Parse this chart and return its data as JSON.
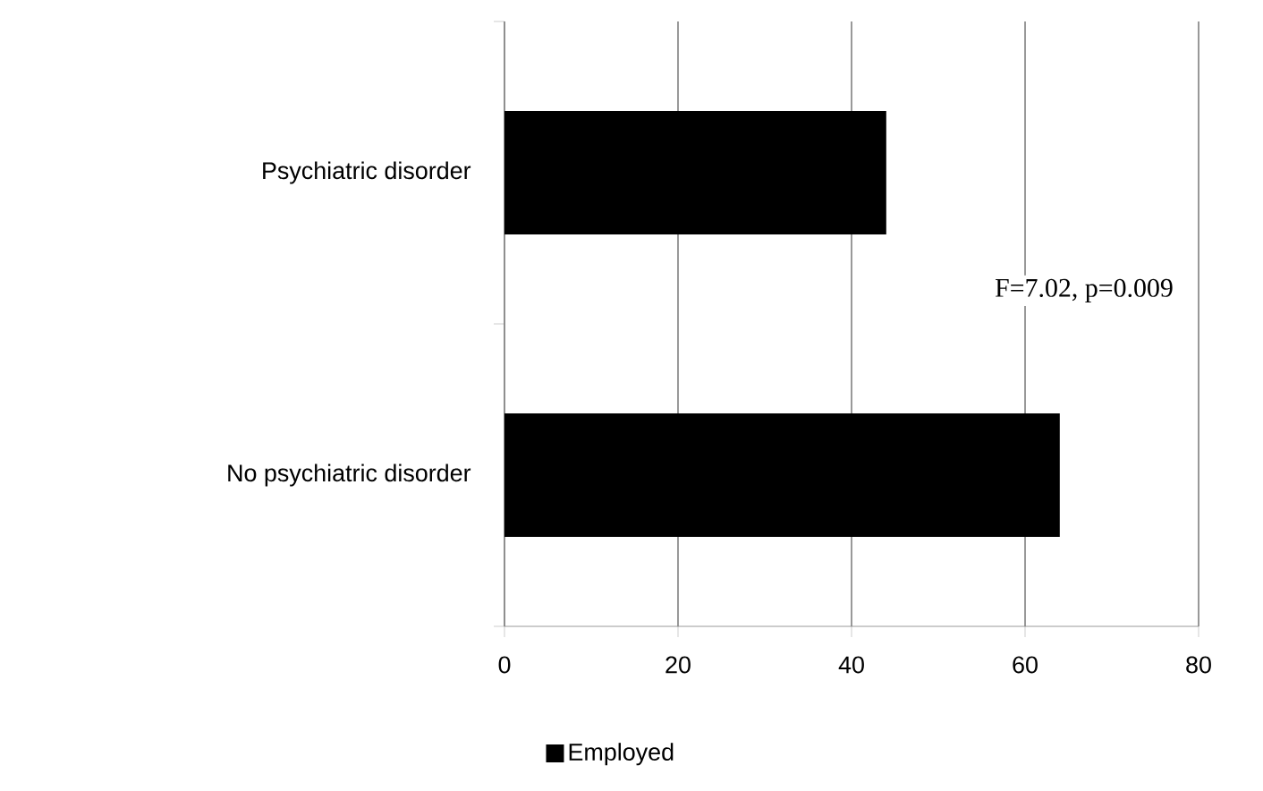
{
  "chart_data": {
    "type": "bar",
    "orientation": "horizontal",
    "categories": [
      "Psychiatric disorder",
      "No psychiatric disorder"
    ],
    "series": [
      {
        "name": "Employed",
        "color": "#000000",
        "values": [
          44,
          64
        ]
      }
    ],
    "xlim": [
      0,
      80
    ],
    "xticks": [
      0,
      20,
      40,
      60,
      80
    ],
    "grid": "x",
    "legend": "bottom",
    "annotations": [
      "F=7.02, p=0.009"
    ]
  }
}
